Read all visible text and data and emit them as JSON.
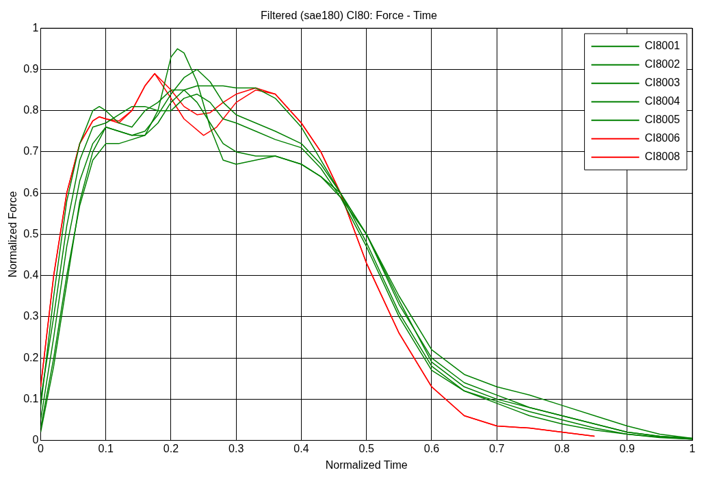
{
  "chart_data": {
    "type": "line",
    "title": "Filtered (sae180) CI80: Force - Time",
    "xlabel": "Normalized Time",
    "ylabel": "Normalized Force",
    "xlim": [
      0,
      1
    ],
    "ylim": [
      0,
      1
    ],
    "xticks": [
      0,
      0.1,
      0.2,
      0.3,
      0.4,
      0.5,
      0.6,
      0.7,
      0.8,
      0.9,
      1
    ],
    "yticks": [
      0,
      0.1,
      0.2,
      0.3,
      0.4,
      0.5,
      0.6,
      0.7,
      0.8,
      0.9,
      1
    ],
    "grid": true,
    "legend": "top right",
    "marker": "none",
    "line_style": "solid",
    "series": [
      {
        "name": "CI8001",
        "color": "#008000",
        "x": [
          0,
          0.02,
          0.04,
          0.06,
          0.08,
          0.1,
          0.12,
          0.14,
          0.16,
          0.18,
          0.2,
          0.21,
          0.22,
          0.24,
          0.26,
          0.28,
          0.3,
          0.33,
          0.36,
          0.4,
          0.43,
          0.46,
          0.5,
          0.55,
          0.6,
          0.65,
          0.7,
          0.75,
          0.8,
          0.85,
          0.9,
          0.95,
          1
        ],
        "values": [
          0.03,
          0.2,
          0.4,
          0.57,
          0.68,
          0.72,
          0.72,
          0.73,
          0.74,
          0.8,
          0.93,
          0.95,
          0.94,
          0.87,
          0.76,
          0.68,
          0.67,
          0.68,
          0.69,
          0.67,
          0.64,
          0.6,
          0.5,
          0.33,
          0.2,
          0.14,
          0.11,
          0.08,
          0.06,
          0.04,
          0.02,
          0.01,
          0.005
        ]
      },
      {
        "name": "CI8002",
        "color": "#008000",
        "x": [
          0,
          0.02,
          0.04,
          0.06,
          0.08,
          0.1,
          0.12,
          0.14,
          0.16,
          0.18,
          0.2,
          0.22,
          0.24,
          0.26,
          0.28,
          0.3,
          0.33,
          0.36,
          0.4,
          0.43,
          0.46,
          0.5,
          0.55,
          0.6,
          0.65,
          0.7,
          0.75,
          0.8,
          0.85,
          0.9,
          0.95,
          1
        ],
        "values": [
          0.05,
          0.25,
          0.47,
          0.63,
          0.72,
          0.76,
          0.75,
          0.74,
          0.75,
          0.79,
          0.84,
          0.88,
          0.9,
          0.87,
          0.82,
          0.79,
          0.77,
          0.75,
          0.72,
          0.67,
          0.6,
          0.5,
          0.35,
          0.22,
          0.16,
          0.13,
          0.11,
          0.085,
          0.06,
          0.035,
          0.015,
          0.005
        ]
      },
      {
        "name": "CI8003",
        "color": "#008000",
        "x": [
          0,
          0.02,
          0.04,
          0.06,
          0.08,
          0.09,
          0.1,
          0.12,
          0.14,
          0.16,
          0.18,
          0.2,
          0.22,
          0.24,
          0.26,
          0.28,
          0.3,
          0.33,
          0.36,
          0.4,
          0.43,
          0.46,
          0.5,
          0.55,
          0.6,
          0.65,
          0.7,
          0.75,
          0.8,
          0.85,
          0.9,
          0.95,
          1
        ],
        "values": [
          0.08,
          0.35,
          0.58,
          0.72,
          0.8,
          0.81,
          0.8,
          0.77,
          0.76,
          0.8,
          0.82,
          0.85,
          0.85,
          0.82,
          0.77,
          0.72,
          0.7,
          0.69,
          0.69,
          0.67,
          0.64,
          0.59,
          0.47,
          0.3,
          0.17,
          0.12,
          0.095,
          0.07,
          0.05,
          0.03,
          0.015,
          0.008,
          0.003
        ]
      },
      {
        "name": "CI8004",
        "color": "#008000",
        "x": [
          0,
          0.02,
          0.04,
          0.06,
          0.08,
          0.1,
          0.12,
          0.14,
          0.16,
          0.18,
          0.2,
          0.22,
          0.24,
          0.26,
          0.28,
          0.3,
          0.33,
          0.36,
          0.4,
          0.43,
          0.46,
          0.5,
          0.55,
          0.6,
          0.65,
          0.7,
          0.75,
          0.8,
          0.85,
          0.9,
          0.95,
          1
        ],
        "values": [
          0.02,
          0.18,
          0.38,
          0.58,
          0.7,
          0.76,
          0.75,
          0.74,
          0.74,
          0.77,
          0.82,
          0.85,
          0.86,
          0.86,
          0.86,
          0.855,
          0.855,
          0.83,
          0.76,
          0.68,
          0.6,
          0.48,
          0.31,
          0.18,
          0.12,
          0.09,
          0.06,
          0.04,
          0.025,
          0.015,
          0.007,
          0.003
        ]
      },
      {
        "name": "CI8005",
        "color": "#008000",
        "x": [
          0,
          0.02,
          0.04,
          0.06,
          0.08,
          0.1,
          0.12,
          0.14,
          0.16,
          0.18,
          0.2,
          0.22,
          0.24,
          0.26,
          0.28,
          0.3,
          0.33,
          0.36,
          0.4,
          0.43,
          0.46,
          0.5,
          0.55,
          0.6,
          0.65,
          0.7,
          0.75,
          0.8,
          0.85,
          0.9,
          0.95,
          1
        ],
        "values": [
          0.1,
          0.3,
          0.52,
          0.68,
          0.76,
          0.77,
          0.79,
          0.81,
          0.81,
          0.8,
          0.8,
          0.83,
          0.84,
          0.82,
          0.78,
          0.77,
          0.75,
          0.73,
          0.71,
          0.66,
          0.59,
          0.5,
          0.34,
          0.19,
          0.13,
          0.1,
          0.08,
          0.06,
          0.04,
          0.02,
          0.01,
          0.004
        ]
      },
      {
        "name": "CI8006",
        "color": "#ff0000",
        "x": [
          0,
          0.02,
          0.04,
          0.06,
          0.08,
          0.09,
          0.1,
          0.12,
          0.14,
          0.16,
          0.175,
          0.2,
          0.22,
          0.24,
          0.26,
          0.28,
          0.3,
          0.33,
          0.36,
          0.4,
          0.43,
          0.46,
          0.5,
          0.55,
          0.6,
          0.65,
          0.7,
          0.75,
          0.8,
          0.85
        ],
        "values": [
          0.13,
          0.4,
          0.6,
          0.72,
          0.775,
          0.785,
          0.78,
          0.775,
          0.8,
          0.86,
          0.89,
          0.85,
          0.81,
          0.79,
          0.795,
          0.82,
          0.84,
          0.855,
          0.84,
          0.77,
          0.7,
          0.6,
          0.43,
          0.26,
          0.13,
          0.06,
          0.035,
          0.03,
          0.02,
          0.01
        ]
      },
      {
        "name": "CI8008",
        "color": "#ff0000",
        "x": [
          0,
          0.02,
          0.04,
          0.06,
          0.08,
          0.09,
          0.1,
          0.12,
          0.14,
          0.16,
          0.175,
          0.2,
          0.22,
          0.25,
          0.27,
          0.3,
          0.33,
          0.36,
          0.4,
          0.43,
          0.46,
          0.5,
          0.55,
          0.6,
          0.65,
          0.7,
          0.75,
          0.8,
          0.85
        ],
        "values": [
          0.13,
          0.4,
          0.6,
          0.72,
          0.775,
          0.785,
          0.78,
          0.77,
          0.8,
          0.86,
          0.89,
          0.83,
          0.78,
          0.74,
          0.76,
          0.82,
          0.85,
          0.84,
          0.77,
          0.7,
          0.6,
          0.43,
          0.26,
          0.13,
          0.06,
          0.035,
          0.03,
          0.02,
          0.01
        ]
      }
    ]
  }
}
